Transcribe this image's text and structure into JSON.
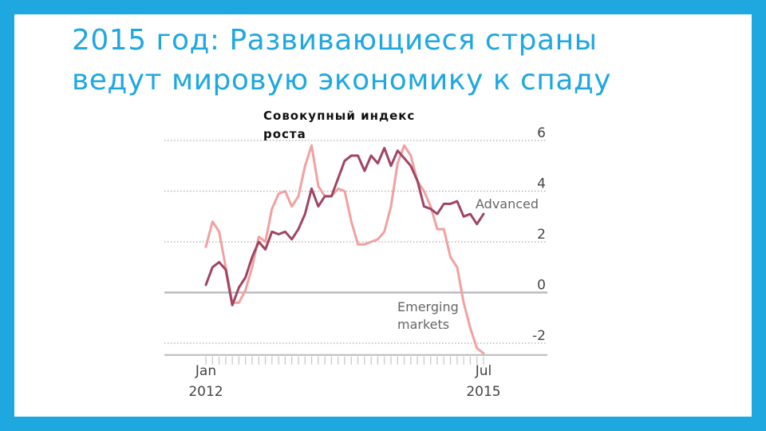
{
  "slide": {
    "title_line1": "2015 год: Развивающиеся страны",
    "title_line2": "ведут мировую экономику к спаду",
    "overlay_label_line1": "Совокупный индекс",
    "overlay_label_line2": "роста"
  },
  "chart_data": {
    "type": "line",
    "x_tick_labels": [
      {
        "x": 2012.0,
        "line1": "Jan",
        "line2": "2012"
      },
      {
        "x": 2015.5,
        "line1": "Jul",
        "line2": "2015"
      }
    ],
    "xlim": [
      2011.5,
      2015.8
    ],
    "ylim": [
      -2.4,
      6.6
    ],
    "y_ticks": [
      6,
      4,
      2,
      0,
      -2
    ],
    "grid": true,
    "colors": {
      "advanced": "#a04464",
      "emerging": "#f2a0a0",
      "tick_labels": "#444444",
      "series_labels": "#666666",
      "gridline": "#aaaaaa",
      "zero_line": "#bbbbbb"
    },
    "series": [
      {
        "name": "Advanced",
        "label_lines": [
          "Advanced"
        ],
        "x": [
          2012.0,
          2012.083,
          2012.167,
          2012.25,
          2012.333,
          2012.417,
          2012.5,
          2012.583,
          2012.667,
          2012.75,
          2012.833,
          2012.917,
          2013.0,
          2013.083,
          2013.167,
          2013.25,
          2013.333,
          2013.417,
          2013.5,
          2013.583,
          2013.667,
          2013.75,
          2013.833,
          2013.917,
          2014.0,
          2014.083,
          2014.167,
          2014.25,
          2014.333,
          2014.417,
          2014.5,
          2014.583,
          2014.667,
          2014.75,
          2014.833,
          2014.917,
          2015.0,
          2015.083,
          2015.167,
          2015.25,
          2015.333,
          2015.417,
          2015.5
        ],
        "values": [
          0.3,
          1.0,
          1.2,
          0.9,
          -0.5,
          0.2,
          0.6,
          1.4,
          2.0,
          1.7,
          2.4,
          2.3,
          2.4,
          2.1,
          2.5,
          3.1,
          4.1,
          3.4,
          3.8,
          3.8,
          4.5,
          5.2,
          5.4,
          5.4,
          4.8,
          5.4,
          5.1,
          5.7,
          5.0,
          5.6,
          5.3,
          5.0,
          4.4,
          3.4,
          3.3,
          3.1,
          3.5,
          3.5,
          3.6,
          3.0,
          3.1,
          2.7,
          3.1
        ]
      },
      {
        "name": "Emerging markets",
        "label_lines": [
          "Emerging",
          "markets"
        ],
        "x": [
          2012.0,
          2012.083,
          2012.167,
          2012.25,
          2012.333,
          2012.417,
          2012.5,
          2012.583,
          2012.667,
          2012.75,
          2012.833,
          2012.917,
          2013.0,
          2013.083,
          2013.167,
          2013.25,
          2013.333,
          2013.417,
          2013.5,
          2013.583,
          2013.667,
          2013.75,
          2013.833,
          2013.917,
          2014.0,
          2014.083,
          2014.167,
          2014.25,
          2014.333,
          2014.417,
          2014.5,
          2014.583,
          2014.667,
          2014.75,
          2014.833,
          2014.917,
          2015.0,
          2015.083,
          2015.167,
          2015.25,
          2015.333,
          2015.417,
          2015.5
        ],
        "values": [
          1.8,
          2.8,
          2.4,
          1.0,
          -0.4,
          -0.4,
          0.1,
          1.0,
          2.2,
          2.0,
          3.3,
          3.9,
          4.0,
          3.4,
          3.8,
          5.0,
          5.8,
          4.2,
          3.8,
          3.8,
          4.1,
          4.0,
          2.8,
          1.9,
          1.9,
          2.0,
          2.1,
          2.4,
          3.4,
          5.1,
          5.8,
          5.4,
          4.4,
          4.0,
          3.4,
          2.5,
          2.5,
          1.4,
          1.0,
          -0.4,
          -1.4,
          -2.2,
          -2.4
        ]
      }
    ]
  }
}
